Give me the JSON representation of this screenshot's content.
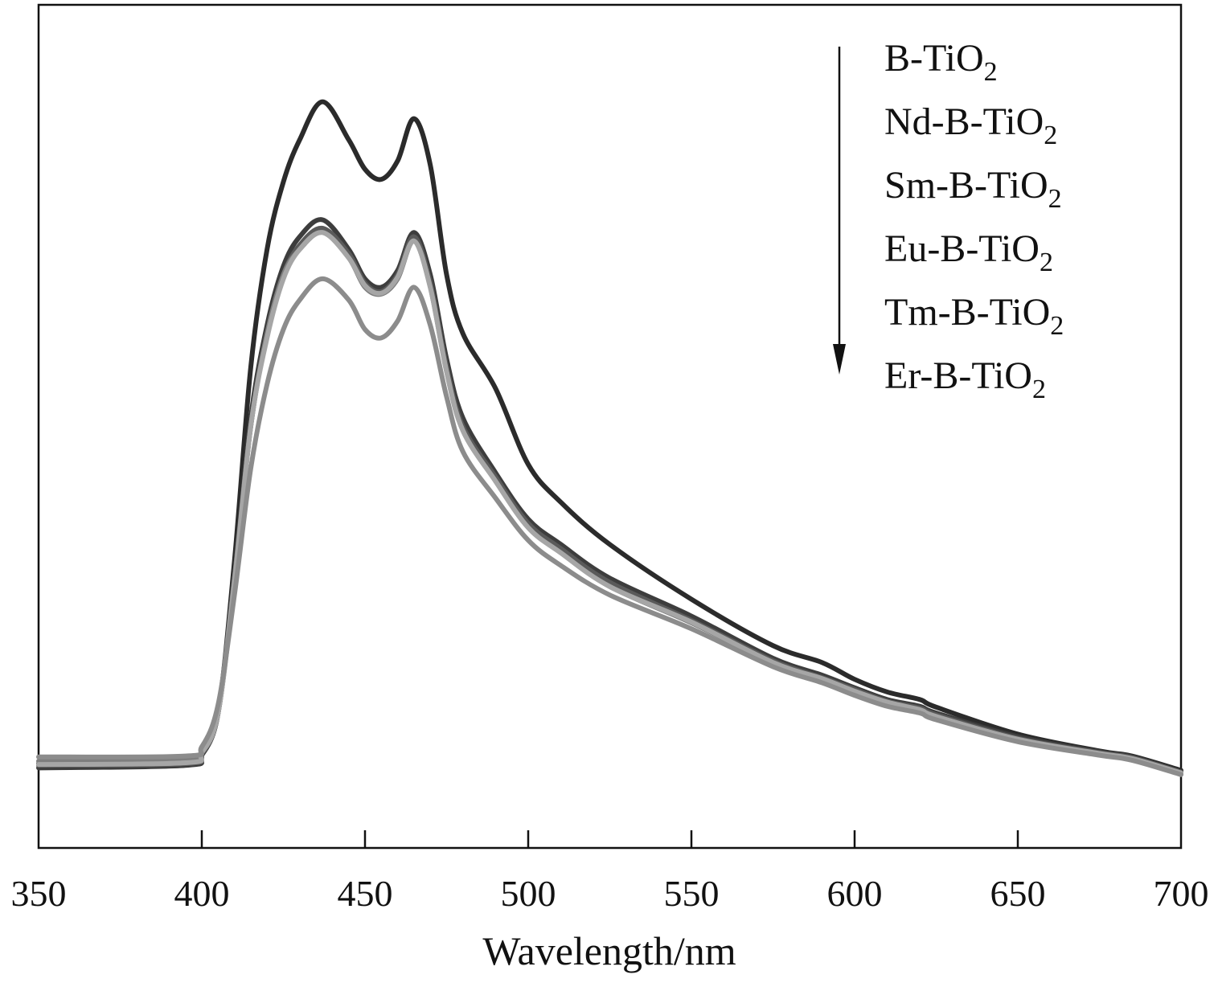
{
  "chart_data": {
    "type": "line",
    "title": "",
    "xlabel": "Wavelength/nm",
    "ylabel": "",
    "xlim": [
      350,
      700
    ],
    "ylim": [
      0,
      100
    ],
    "x_ticks": [
      350,
      400,
      450,
      500,
      550,
      600,
      650,
      700
    ],
    "x_tick_labels": [
      "350",
      "400",
      "450",
      "500",
      "550",
      "600",
      "650",
      "700"
    ],
    "y_ticks_shown": false,
    "grid": false,
    "legend": {
      "position": "top-right",
      "arrow": "down",
      "entries": [
        {
          "prefix": "B-TiO",
          "sub": "2"
        },
        {
          "prefix": "Nd-B-TiO",
          "sub": "2"
        },
        {
          "prefix": "Sm-B-TiO",
          "sub": "2"
        },
        {
          "prefix": "Eu-B-TiO",
          "sub": "2"
        },
        {
          "prefix": "Tm-B-TiO",
          "sub": "2"
        },
        {
          "prefix": "Er-B-TiO",
          "sub": "2"
        }
      ]
    },
    "x": [
      350,
      395,
      400,
      405,
      410,
      415,
      420,
      425,
      430,
      437,
      445,
      450,
      455,
      460,
      465,
      470,
      475,
      480,
      490,
      500,
      510,
      525,
      550,
      575,
      590,
      600,
      610,
      620,
      625,
      650,
      675,
      685,
      700
    ],
    "series": [
      {
        "name": "B-TiO₂",
        "color": "#2b2b2b",
        "values": [
          10.0,
          10.5,
          11.5,
          16,
          34,
          57,
          71,
          79,
          84,
          88.5,
          84,
          80.5,
          79.3,
          81.5,
          86.5,
          81,
          68,
          61,
          54.5,
          45.5,
          41,
          36,
          29.5,
          24,
          22,
          20,
          18.5,
          17.6,
          16.7,
          13.5,
          11.5,
          10.9,
          9.2
        ]
      },
      {
        "name": "Nd-B-TiO₂",
        "color": "#3d3d3d",
        "values": [
          9.5,
          9.8,
          11.0,
          16,
          32,
          51,
          62,
          69,
          72.5,
          74.5,
          71,
          67.5,
          66.5,
          68.5,
          73,
          68,
          58,
          51,
          44.5,
          39,
          36,
          32,
          27.5,
          22.5,
          20.5,
          19,
          17.6,
          16.8,
          16,
          13.2,
          11.4,
          10.8,
          9.0
        ]
      },
      {
        "name": "Sm-B-TiO₂",
        "color": "#5a5a5a",
        "values": [
          9.8,
          10.0,
          11.2,
          16,
          32,
          50,
          61,
          68,
          71.5,
          73.5,
          70.5,
          67,
          66,
          68,
          72.5,
          67,
          57,
          50,
          44,
          38.5,
          35.5,
          31.5,
          27,
          22.2,
          20.2,
          18.8,
          17.4,
          16.6,
          15.8,
          13,
          11.3,
          10.7,
          9.0
        ]
      },
      {
        "name": "Eu-B-TiO₂",
        "color": "#7e7e7e",
        "values": [
          10.3,
          10.4,
          11.5,
          16.5,
          32,
          50,
          61,
          68,
          71,
          73,
          70,
          66.5,
          65.7,
          67.5,
          72,
          66.5,
          56.5,
          49.5,
          43.5,
          38,
          35,
          31,
          26.7,
          22,
          20,
          18.5,
          17.2,
          16.3,
          15.5,
          12.8,
          11.1,
          10.5,
          8.8
        ]
      },
      {
        "name": "Tm-B-TiO₂",
        "color": "#a6a6a6",
        "values": [
          9.9,
          10.1,
          11.3,
          16,
          31.5,
          50,
          60.5,
          67.5,
          71,
          73,
          70,
          66.7,
          65.8,
          67.7,
          72,
          66.5,
          56.5,
          49.5,
          43.5,
          38,
          35,
          31,
          26.8,
          22,
          20.1,
          18.6,
          17.3,
          16.4,
          15.6,
          12.9,
          11.2,
          10.6,
          8.9
        ]
      },
      {
        "name": "Er-B-TiO₂",
        "color": "#8c8c8c",
        "values": [
          10.8,
          10.9,
          12.0,
          17,
          30,
          45,
          55,
          61.5,
          65,
          67.5,
          65,
          61.5,
          60.5,
          62.5,
          66.5,
          62,
          53.5,
          47,
          41.5,
          36.5,
          33.5,
          30,
          26,
          21.5,
          19.6,
          18.1,
          16.8,
          16,
          15.2,
          12.6,
          11,
          10.4,
          8.7
        ]
      }
    ]
  }
}
